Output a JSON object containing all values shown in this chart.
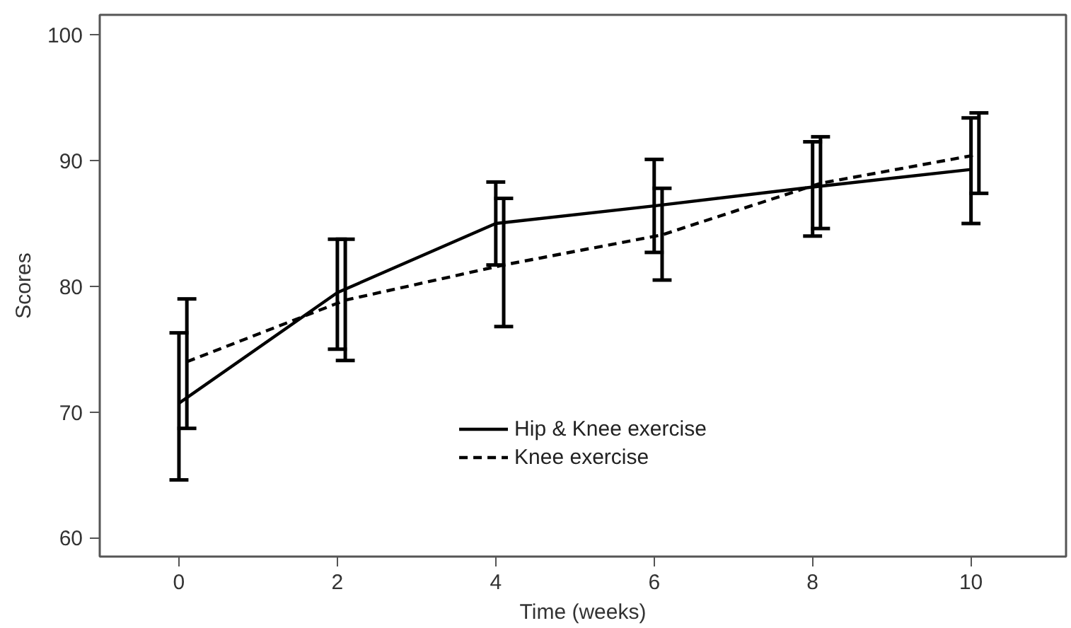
{
  "chart_data": {
    "type": "line",
    "xlabel": "Time (weeks)",
    "ylabel": "Scores",
    "xlim": [
      -1,
      11.2
    ],
    "xticks": [
      0,
      2,
      4,
      6,
      8,
      10
    ],
    "ylim": [
      58.5,
      101.6
    ],
    "yticks": [
      60,
      70,
      80,
      90,
      100
    ],
    "series": [
      {
        "name": "Hip & Knee exercise",
        "color": "#000000",
        "line_style": "solid",
        "x": [
          0,
          2,
          4,
          6,
          8,
          10
        ],
        "values": [
          70.7,
          79.5,
          85.0,
          86.4,
          87.9,
          89.3
        ],
        "errors": [
          [
            64.6,
            76.3
          ],
          [
            75.0,
            83.75
          ],
          [
            81.7,
            88.3
          ],
          [
            82.7,
            90.1
          ],
          [
            84.0,
            91.5
          ],
          [
            85.0,
            93.4
          ]
        ]
      },
      {
        "name": "Knee exercise",
        "color": "#000000",
        "line_style": "dashed",
        "x": [
          0.1,
          2.1,
          4.1,
          6.1,
          8.1,
          10.1
        ],
        "values": [
          74.0,
          78.9,
          81.7,
          84.1,
          88.2,
          90.5
        ],
        "errors": [
          [
            68.7,
            79.0
          ],
          [
            74.1,
            83.75
          ],
          [
            76.8,
            87.0
          ],
          [
            80.5,
            87.8
          ],
          [
            84.6,
            91.9
          ],
          [
            87.4,
            93.8
          ]
        ]
      }
    ],
    "grid": false,
    "legend": "bottom",
    "marker": "none"
  }
}
